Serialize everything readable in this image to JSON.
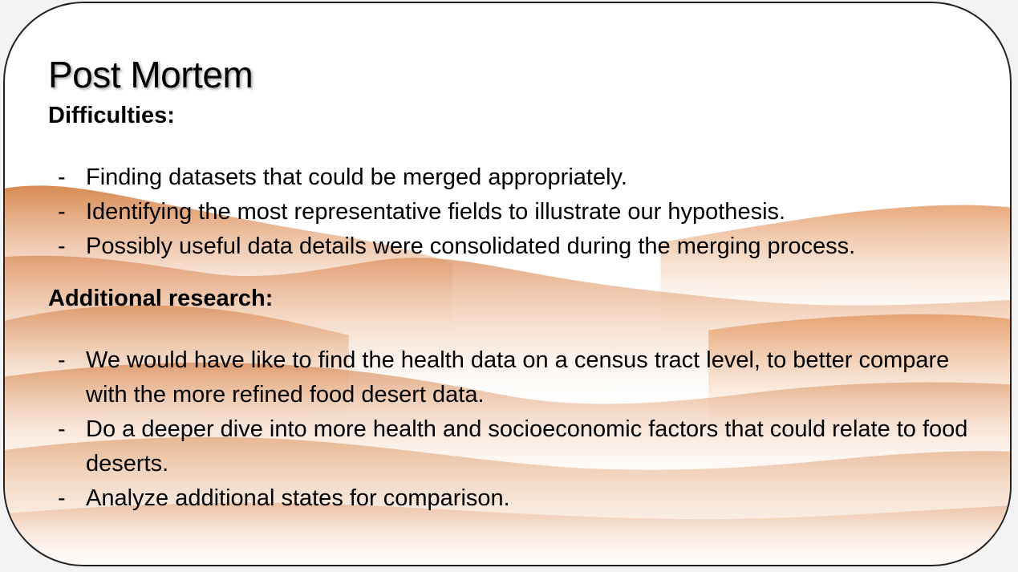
{
  "slide": {
    "title": "Post Mortem",
    "sections": [
      {
        "heading": "Difficulties:",
        "items": [
          "Finding datasets that could be merged appropriately.",
          "Identifying the most representative fields to illustrate our hypothesis.",
          "Possibly useful data details were consolidated during the merging process."
        ]
      },
      {
        "heading": "Additional research:",
        "items": [
          "We would have like to find the health data on a census tract level, to better compare with the more refined food desert data.",
          "Do a deeper dive into more health and socioeconomic factors that could relate to food deserts.",
          "Analyze additional states for comparison."
        ]
      }
    ],
    "bullet_marker": "-"
  },
  "colors": {
    "text": "#000000",
    "border": "#222222",
    "mountain_accent": "#d98a52",
    "mountain_light": "#f3d2b6"
  }
}
